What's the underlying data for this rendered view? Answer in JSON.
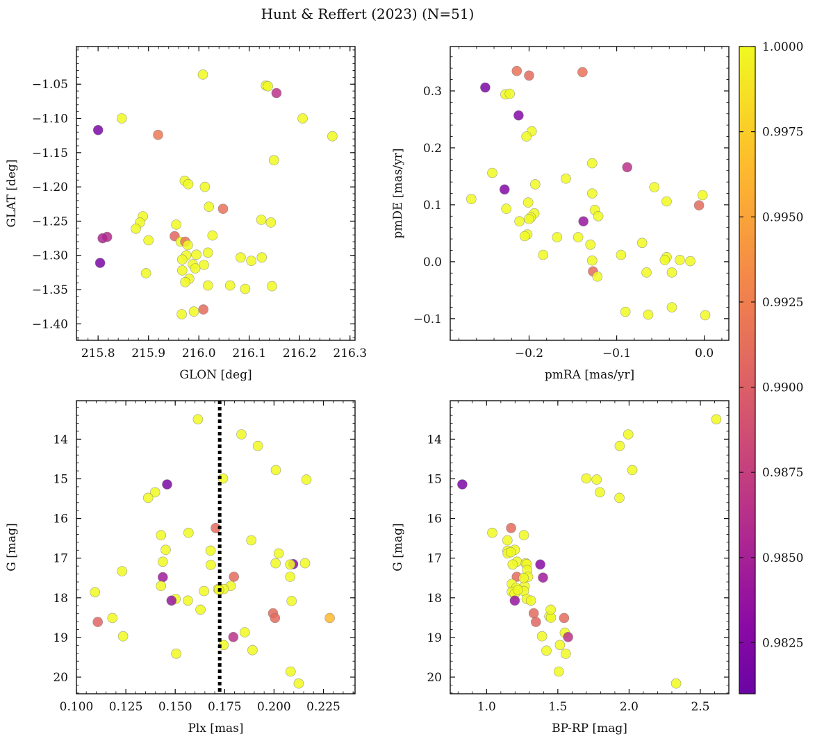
{
  "suptitle": "Hunt & Reffert (2023) (N=51)",
  "chart_data": [
    {
      "type": "scatter",
      "xlabel": "GLON [deg]",
      "ylabel": "GLAT [deg]",
      "xlim": [
        215.757,
        216.31
      ],
      "ylim": [
        -1.424,
        -0.995
      ],
      "xticks": [
        215.8,
        215.9,
        216.0,
        216.1,
        216.2,
        216.3
      ],
      "xtick_labels": [
        "215.8",
        "215.9",
        "216.0",
        "216.1",
        "216.2",
        "216.3"
      ],
      "yticks": [
        -1.05,
        -1.1,
        -1.15,
        -1.2,
        -1.25,
        -1.3,
        -1.35,
        -1.4
      ],
      "ytick_labels": [
        "−1.05",
        "−1.10",
        "−1.15",
        "−1.20",
        "−1.25",
        "−1.30",
        "−1.35",
        "−1.40"
      ],
      "y_inverted": false,
      "points": [
        [
          216.008,
          -1.036,
          1.0
        ],
        [
          216.133,
          -1.052,
          1.0
        ],
        [
          216.137,
          -1.053,
          1.0
        ],
        [
          216.154,
          -1.063,
          0.9865
        ],
        [
          215.847,
          -1.1,
          1.0
        ],
        [
          216.206,
          -1.1,
          1.0
        ],
        [
          216.265,
          -1.126,
          1.0
        ],
        [
          215.8,
          -1.117,
          0.982
        ],
        [
          215.919,
          -1.124,
          0.992
        ],
        [
          216.149,
          -1.161,
          1.0
        ],
        [
          215.972,
          -1.191,
          1.0
        ],
        [
          215.979,
          -1.196,
          1.0
        ],
        [
          216.012,
          -1.2,
          1.0
        ],
        [
          216.02,
          -1.229,
          1.0
        ],
        [
          216.048,
          -1.232,
          0.9915
        ],
        [
          216.124,
          -1.248,
          1.0
        ],
        [
          216.143,
          -1.252,
          1.0
        ],
        [
          215.889,
          -1.243,
          1.0
        ],
        [
          215.883,
          -1.252,
          1.0
        ],
        [
          215.875,
          -1.261,
          1.0
        ],
        [
          215.955,
          -1.255,
          1.0
        ],
        [
          216.027,
          -1.271,
          1.0
        ],
        [
          215.952,
          -1.272,
          0.9905
        ],
        [
          215.818,
          -1.273,
          0.986
        ],
        [
          215.809,
          -1.275,
          0.9855
        ],
        [
          215.9,
          -1.278,
          1.0
        ],
        [
          215.964,
          -1.28,
          1.0
        ],
        [
          215.973,
          -1.28,
          0.9915
        ],
        [
          215.978,
          -1.285,
          1.0
        ],
        [
          216.018,
          -1.296,
          1.0
        ],
        [
          215.995,
          -1.299,
          1.0
        ],
        [
          215.975,
          -1.3,
          1.0
        ],
        [
          216.083,
          -1.303,
          1.0
        ],
        [
          216.125,
          -1.303,
          1.0
        ],
        [
          215.804,
          -1.311,
          0.982
        ],
        [
          215.967,
          -1.306,
          1.0
        ],
        [
          216.104,
          -1.308,
          1.0
        ],
        [
          215.988,
          -1.313,
          1.0
        ],
        [
          216.01,
          -1.314,
          1.0
        ],
        [
          215.993,
          -1.319,
          1.0
        ],
        [
          215.967,
          -1.322,
          1.0
        ],
        [
          215.895,
          -1.326,
          1.0
        ],
        [
          215.981,
          -1.334,
          1.0
        ],
        [
          215.973,
          -1.339,
          1.0
        ],
        [
          216.018,
          -1.344,
          1.0
        ],
        [
          216.062,
          -1.344,
          1.0
        ],
        [
          216.145,
          -1.345,
          1.0
        ],
        [
          216.092,
          -1.349,
          1.0
        ],
        [
          216.009,
          -1.379,
          0.991
        ],
        [
          215.99,
          -1.382,
          1.0
        ],
        [
          215.966,
          -1.386,
          1.0
        ]
      ]
    },
    {
      "type": "scatter",
      "xlabel": "pmRA [mas/yr]",
      "ylabel": "pmDE [mas/yr]",
      "xlim": [
        -0.29,
        0.028
      ],
      "ylim": [
        -0.138,
        0.378
      ],
      "xticks": [
        -0.2,
        -0.1,
        0.0
      ],
      "xtick_labels": [
        "−0.2",
        "−0.1",
        "0.0"
      ],
      "yticks": [
        -0.1,
        0.0,
        0.1,
        0.2,
        0.3
      ],
      "ytick_labels": [
        "−0.1",
        "0.0",
        "0.1",
        "0.2",
        "0.3"
      ],
      "y_inverted": false,
      "points": [
        [
          -0.214,
          0.335,
          0.9915
        ],
        [
          -0.2,
          0.327,
          0.991
        ],
        [
          -0.139,
          0.333,
          0.9915
        ],
        [
          -0.25,
          0.306,
          0.982
        ],
        [
          -0.227,
          0.294,
          1.0
        ],
        [
          -0.222,
          0.295,
          1.0
        ],
        [
          -0.212,
          0.257,
          0.9825
        ],
        [
          -0.197,
          0.229,
          1.0
        ],
        [
          -0.203,
          0.22,
          1.0
        ],
        [
          -0.128,
          0.173,
          1.0
        ],
        [
          -0.088,
          0.166,
          0.9865
        ],
        [
          -0.242,
          0.156,
          1.0
        ],
        [
          -0.158,
          0.146,
          1.0
        ],
        [
          -0.193,
          0.136,
          1.0
        ],
        [
          -0.057,
          0.131,
          1.0
        ],
        [
          -0.128,
          0.12,
          1.0
        ],
        [
          -0.002,
          0.117,
          1.0
        ],
        [
          -0.228,
          0.127,
          0.9825
        ],
        [
          -0.266,
          0.11,
          1.0
        ],
        [
          -0.043,
          0.106,
          1.0
        ],
        [
          -0.201,
          0.104,
          1.0
        ],
        [
          -0.006,
          0.099,
          0.991
        ],
        [
          -0.226,
          0.093,
          1.0
        ],
        [
          -0.125,
          0.091,
          1.0
        ],
        [
          -0.194,
          0.085,
          1.0
        ],
        [
          -0.121,
          0.08,
          1.0
        ],
        [
          -0.198,
          0.078,
          1.0
        ],
        [
          -0.2,
          0.075,
          1.0
        ],
        [
          -0.211,
          0.071,
          1.0
        ],
        [
          -0.138,
          0.071,
          0.984
        ],
        [
          -0.202,
          0.048,
          1.0
        ],
        [
          -0.168,
          0.043,
          1.0
        ],
        [
          -0.144,
          0.043,
          1.0
        ],
        [
          -0.205,
          0.045,
          1.0
        ],
        [
          -0.071,
          0.033,
          1.0
        ],
        [
          -0.13,
          0.03,
          1.0
        ],
        [
          -0.095,
          0.012,
          1.0
        ],
        [
          -0.184,
          0.012,
          1.0
        ],
        [
          -0.043,
          0.008,
          1.0
        ],
        [
          -0.045,
          0.003,
          1.0
        ],
        [
          -0.128,
          0.002,
          1.0
        ],
        [
          -0.028,
          0.003,
          1.0
        ],
        [
          -0.016,
          0.001,
          1.0
        ],
        [
          -0.127,
          -0.017,
          0.991
        ],
        [
          -0.066,
          -0.019,
          1.0
        ],
        [
          -0.037,
          -0.019,
          1.0
        ],
        [
          -0.122,
          -0.026,
          1.0
        ],
        [
          -0.037,
          -0.08,
          1.0
        ],
        [
          -0.09,
          -0.088,
          1.0
        ],
        [
          -0.064,
          -0.093,
          1.0
        ],
        [
          0.001,
          -0.094,
          1.0
        ]
      ]
    },
    {
      "type": "scatter",
      "xlabel": "Plx [mas]",
      "ylabel": "G [mag]",
      "xlim": [
        0.1,
        0.241
      ],
      "ylim": [
        20.42,
        13.03
      ],
      "xticks": [
        0.1,
        0.125,
        0.15,
        0.175,
        0.2,
        0.225
      ],
      "xtick_labels": [
        "0.100",
        "0.125",
        "0.150",
        "0.175",
        "0.200",
        "0.225"
      ],
      "yticks": [
        14,
        15,
        16,
        17,
        18,
        19,
        20
      ],
      "ytick_labels": [
        "14",
        "15",
        "16",
        "17",
        "18",
        "19",
        "20"
      ],
      "y_inverted": true,
      "vline": 0.1725,
      "points": [
        [
          0.1615,
          13.5,
          1.0
        ],
        [
          0.1835,
          13.88,
          1.0
        ],
        [
          0.1918,
          14.17,
          1.0
        ],
        [
          0.2009,
          14.78,
          1.0
        ],
        [
          0.1742,
          14.99,
          1.0
        ],
        [
          0.2164,
          15.02,
          1.0
        ],
        [
          0.1459,
          15.14,
          0.982
        ],
        [
          0.1398,
          15.34,
          1.0
        ],
        [
          0.1363,
          15.48,
          1.0
        ],
        [
          0.1567,
          16.36,
          1.0
        ],
        [
          0.1428,
          16.42,
          1.0
        ],
        [
          0.1705,
          16.24,
          0.991
        ],
        [
          0.1885,
          16.55,
          1.0
        ],
        [
          0.1452,
          16.79,
          1.0
        ],
        [
          0.1679,
          16.81,
          1.0
        ],
        [
          0.2024,
          16.88,
          1.0
        ],
        [
          0.1437,
          17.09,
          1.0
        ],
        [
          0.2008,
          17.13,
          1.0
        ],
        [
          0.2157,
          17.13,
          1.0
        ],
        [
          0.2097,
          17.15,
          0.983
        ],
        [
          0.2082,
          17.16,
          1.0
        ],
        [
          0.168,
          17.17,
          1.0
        ],
        [
          0.1231,
          17.33,
          1.0
        ],
        [
          0.2082,
          17.47,
          1.0
        ],
        [
          0.1437,
          17.48,
          0.9845
        ],
        [
          0.1797,
          17.47,
          0.991
        ],
        [
          0.1428,
          17.7,
          1.0
        ],
        [
          0.1781,
          17.7,
          1.0
        ],
        [
          0.1717,
          17.78,
          1.0
        ],
        [
          0.1745,
          17.78,
          1.0
        ],
        [
          0.1646,
          17.83,
          1.0
        ],
        [
          0.1094,
          17.86,
          1.0
        ],
        [
          0.1502,
          18.03,
          1.0
        ],
        [
          0.1564,
          18.07,
          1.0
        ],
        [
          0.1481,
          18.07,
          0.984
        ],
        [
          0.2089,
          18.08,
          1.0
        ],
        [
          0.1628,
          18.3,
          1.0
        ],
        [
          0.1995,
          18.39,
          0.991
        ],
        [
          0.1182,
          18.51,
          1.0
        ],
        [
          0.2005,
          18.51,
          0.991
        ],
        [
          0.2282,
          18.51,
          0.9965
        ],
        [
          0.1108,
          18.61,
          0.9905
        ],
        [
          0.1852,
          18.87,
          1.0
        ],
        [
          0.1236,
          18.97,
          1.0
        ],
        [
          0.1794,
          18.99,
          0.9865
        ],
        [
          0.1745,
          19.19,
          1.0
        ],
        [
          0.1891,
          19.32,
          1.0
        ],
        [
          0.1505,
          19.41,
          1.0
        ],
        [
          0.2084,
          19.86,
          1.0
        ],
        [
          0.2125,
          20.16,
          1.0
        ],
        [
          0.1722,
          17.8,
          1.0
        ]
      ]
    },
    {
      "type": "scatter",
      "xlabel": "BP-RP [mag]",
      "ylabel": "G [mag]",
      "xlim": [
        0.745,
        2.7
      ],
      "ylim": [
        20.42,
        13.03
      ],
      "xticks": [
        1.0,
        1.5,
        2.0,
        2.5
      ],
      "xtick_labels": [
        "1.0",
        "1.5",
        "2.0",
        "2.5"
      ],
      "yticks": [
        14,
        15,
        16,
        17,
        18,
        19,
        20
      ],
      "ytick_labels": [
        "14",
        "15",
        "16",
        "17",
        "18",
        "19",
        "20"
      ],
      "y_inverted": true,
      "points": [
        [
          2.612,
          13.5,
          1.0
        ],
        [
          1.994,
          13.88,
          1.0
        ],
        [
          1.934,
          14.17,
          1.0
        ],
        [
          2.023,
          14.78,
          1.0
        ],
        [
          1.7,
          14.99,
          1.0
        ],
        [
          1.772,
          15.02,
          1.0
        ],
        [
          0.83,
          15.14,
          0.982
        ],
        [
          1.795,
          15.34,
          1.0
        ],
        [
          1.932,
          15.48,
          1.0
        ],
        [
          1.04,
          16.36,
          1.0
        ],
        [
          1.262,
          16.42,
          1.0
        ],
        [
          1.172,
          16.24,
          0.991
        ],
        [
          1.146,
          16.55,
          1.0
        ],
        [
          1.198,
          16.79,
          1.0
        ],
        [
          1.147,
          16.81,
          1.0
        ],
        [
          1.148,
          16.88,
          1.0
        ],
        [
          1.213,
          17.09,
          1.0
        ],
        [
          1.275,
          17.13,
          1.0
        ],
        [
          1.282,
          17.15,
          1.0
        ],
        [
          1.183,
          17.16,
          1.0
        ],
        [
          1.377,
          17.16,
          0.983
        ],
        [
          1.285,
          17.3,
          1.0
        ],
        [
          1.291,
          17.47,
          1.0
        ],
        [
          1.212,
          17.47,
          0.991
        ],
        [
          1.396,
          17.49,
          0.9845
        ],
        [
          1.177,
          17.65,
          1.0
        ],
        [
          1.208,
          17.75,
          1.0
        ],
        [
          1.267,
          17.71,
          1.0
        ],
        [
          1.262,
          17.83,
          1.0
        ],
        [
          1.177,
          17.85,
          1.0
        ],
        [
          1.197,
          17.9,
          1.0
        ],
        [
          1.282,
          18.03,
          1.0
        ],
        [
          1.311,
          18.07,
          1.0
        ],
        [
          1.198,
          18.07,
          0.984
        ],
        [
          1.331,
          18.39,
          0.991
        ],
        [
          1.44,
          18.47,
          1.0
        ],
        [
          1.452,
          18.5,
          1.0
        ],
        [
          1.544,
          18.51,
          0.991
        ],
        [
          1.346,
          18.61,
          0.9905
        ],
        [
          1.549,
          18.88,
          1.0
        ],
        [
          1.389,
          18.97,
          1.0
        ],
        [
          1.572,
          18.99,
          0.9865
        ],
        [
          1.515,
          19.19,
          1.0
        ],
        [
          1.42,
          19.33,
          1.0
        ],
        [
          1.556,
          19.41,
          1.0
        ],
        [
          1.507,
          19.86,
          1.0
        ],
        [
          2.33,
          20.16,
          1.0
        ],
        [
          1.45,
          18.3,
          1.0
        ],
        [
          1.26,
          17.5,
          1.0
        ],
        [
          1.22,
          17.8,
          1.0
        ],
        [
          1.17,
          16.85,
          1.0
        ]
      ]
    }
  ],
  "colorbar": {
    "vmin": 0.981,
    "vmax": 1.0,
    "ticks": [
      0.9825,
      0.985,
      0.9875,
      0.99,
      0.9925,
      0.995,
      0.9975,
      1.0
    ],
    "tick_labels": [
      "0.9825",
      "0.9850",
      "0.9875",
      "0.9900",
      "0.9925",
      "0.9950",
      "0.9975",
      "1.0000"
    ],
    "colormap": "plasma",
    "colormap_range": [
      0.2,
      1.0
    ]
  }
}
